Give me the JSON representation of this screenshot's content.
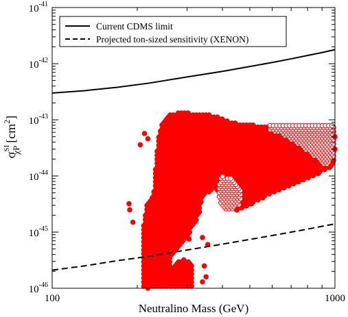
{
  "chart_data": {
    "type": "scatter",
    "title": "",
    "xlabel": "Neutralino Mass (GeV)",
    "ylabel": {
      "base": "σ",
      "superscript": "SI",
      "subscript": "χP",
      "unit_prefix": "[cm",
      "unit_power": "2",
      "unit_suffix": "]"
    },
    "x_scale": "log",
    "y_scale": "log",
    "xlim": [
      100,
      1000
    ],
    "ylim": [
      1e-46,
      1e-41
    ],
    "x_ticks": [
      {
        "value": 100,
        "label": "100"
      },
      {
        "value": 1000,
        "label": "1000"
      }
    ],
    "y_ticks": [
      {
        "value": 1e-41,
        "base": "10",
        "exp": "-41"
      },
      {
        "value": 1e-42,
        "base": "10",
        "exp": "-42"
      },
      {
        "value": 1e-43,
        "base": "10",
        "exp": "-43"
      },
      {
        "value": 1e-44,
        "base": "10",
        "exp": "-44"
      },
      {
        "value": 1e-45,
        "base": "10",
        "exp": "-45"
      },
      {
        "value": 1e-46,
        "base": "10",
        "exp": "-46"
      }
    ],
    "legend": {
      "placement": "top-left",
      "entries": [
        {
          "label": "Current CDMS limit",
          "style": "solid"
        },
        {
          "label": "Projected ton-sized sensitivity (XENON)",
          "style": "dashed"
        }
      ]
    },
    "lines": [
      {
        "name": "Current CDMS limit",
        "style": "solid",
        "color": "#000000",
        "x": [
          100,
          130,
          170,
          220,
          300,
          400,
          500,
          600,
          700,
          800,
          900,
          1000
        ],
        "y": [
          3e-43,
          3.3e-43,
          3.8e-43,
          4.5e-43,
          5.8e-43,
          7.3e-43,
          8.9e-43,
          1.05e-42,
          1.22e-42,
          1.4e-42,
          1.58e-42,
          1.78e-42
        ]
      },
      {
        "name": "Projected ton-sized sensitivity (XENON)",
        "style": "dashed",
        "color": "#000000",
        "x": [
          100,
          130,
          170,
          220,
          300,
          400,
          500,
          600,
          700,
          800,
          900,
          1000
        ],
        "y": [
          2.1e-46,
          2.5e-46,
          3.1e-46,
          3.7e-46,
          4.8e-46,
          6.1e-46,
          7.4e-46,
          8.7e-46,
          1e-45,
          1.13e-45,
          1.27e-45,
          1.4e-45
        ]
      }
    ],
    "scatter": {
      "filled_color": "#ff0000",
      "open_color": "#ff0000",
      "marker": "circle",
      "regions": [
        {
          "name": "main-band",
          "filled": true,
          "polygon": [
            [
              240,
              7e-44
            ],
            [
              260,
              1.3e-43
            ],
            [
              300,
              1.35e-43
            ],
            [
              340,
              1.25e-43
            ],
            [
              380,
              1.2e-43
            ],
            [
              430,
              9e-44
            ],
            [
              520,
              8e-44
            ],
            [
              1000,
              8e-44
            ],
            [
              1000,
              1.5e-44
            ],
            [
              800,
              9e-45
            ],
            [
              600,
              5e-45
            ],
            [
              500,
              3e-45
            ],
            [
              450,
              2.4e-45
            ],
            [
              420,
              2.8e-45
            ],
            [
              400,
              4e-45
            ],
            [
              370,
              6e-45
            ],
            [
              340,
              4e-45
            ],
            [
              330,
              2e-45
            ],
            [
              310,
              1.1e-45
            ],
            [
              290,
              6e-46
            ],
            [
              270,
              4e-46
            ],
            [
              250,
              4e-46
            ],
            [
              235,
              7e-46
            ],
            [
              225,
              1.4e-45
            ],
            [
              220,
              2.5e-45
            ],
            [
              230,
              6e-45
            ],
            [
              232,
              1.5e-44
            ],
            [
              235,
              3e-44
            ]
          ],
          "step": 0.0115,
          "ystep": 0.036
        },
        {
          "name": "lower-left-cluster",
          "filled": true,
          "polygon": [
            [
              210,
              1e-46
            ],
            [
              262,
              1e-46
            ],
            [
              262,
              8e-46
            ],
            [
              250,
              1.4e-45
            ],
            [
              240,
              2.5e-45
            ],
            [
              228,
              4e-45
            ],
            [
              218,
              3.5e-45
            ],
            [
              212,
              2e-45
            ],
            [
              208,
              7e-46
            ]
          ],
          "step": 0.0115,
          "ystep": 0.036
        },
        {
          "name": "lower-middle-cluster",
          "filled": true,
          "polygon": [
            [
              262,
              1e-46
            ],
            [
              315,
              1e-46
            ],
            [
              315,
              2.5e-46
            ],
            [
              300,
              3.2e-46
            ],
            [
              280,
              3e-46
            ],
            [
              265,
              2.2e-46
            ]
          ],
          "step": 0.0115,
          "ystep": 0.036
        },
        {
          "name": "open-upper-right",
          "filled": false,
          "polygon": [
            [
              590,
              8e-44
            ],
            [
              1000,
              8e-44
            ],
            [
              1000,
              2e-44
            ],
            [
              930,
              1.5e-44
            ],
            [
              820,
              2.5e-44
            ],
            [
              720,
              4e-44
            ],
            [
              650,
              5.5e-44
            ],
            [
              590,
              6.5e-44
            ]
          ],
          "step": 0.0115,
          "ystep": 0.036
        },
        {
          "name": "open-small-patch",
          "filled": false,
          "polygon": [
            [
              395,
              1e-44
            ],
            [
              440,
              9e-45
            ],
            [
              470,
              5e-45
            ],
            [
              460,
              3e-45
            ],
            [
              420,
              2.4e-45
            ],
            [
              395,
              3e-45
            ],
            [
              385,
              5e-45
            ]
          ],
          "step": 0.0115,
          "ystep": 0.036
        }
      ],
      "extra_points": [
        [
          212,
          5.7e-44
        ],
        [
          205,
          3.6e-44
        ],
        [
          218,
          4.6e-44
        ],
        [
          188,
          2.5e-45
        ],
        [
          193,
          1.5e-45
        ],
        [
          187,
          3.2e-45
        ],
        [
          300,
          1.5e-45
        ],
        [
          305,
          7.5e-46
        ],
        [
          310,
          1.4e-45
        ],
        [
          340,
          8e-46
        ],
        [
          355,
          6e-46
        ],
        [
          255,
          1.5e-46
        ],
        [
          292,
          3.2e-46
        ],
        [
          298,
          2.4e-46
        ],
        [
          232,
          9e-46
        ],
        [
          350,
          1.6e-46
        ],
        [
          340,
          1.3e-46
        ],
        [
          345,
          2.5e-46
        ],
        [
          225,
          1.2e-46
        ],
        [
          218,
          1e-46
        ],
        [
          1000,
          5e-44
        ],
        [
          985,
          1.8e-44
        ],
        [
          1000,
          3e-44
        ]
      ]
    }
  }
}
